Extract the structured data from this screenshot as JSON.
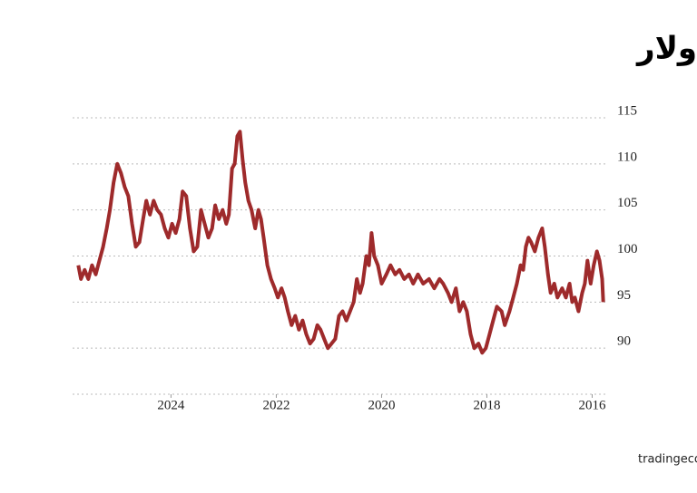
{
  "chart_data": {
    "type": "line",
    "title": "مؤشّر الدولار",
    "source": "المصدر: tradingeconomics.com",
    "x": [
      2015.79,
      2015.81,
      2015.86,
      2015.91,
      2015.97,
      2016.03,
      2016.09,
      2016.14,
      2016.19,
      2016.26,
      2016.33,
      2016.38,
      2016.43,
      2016.5,
      2016.57,
      2016.66,
      2016.72,
      2016.79,
      2016.84,
      2016.9,
      2016.95,
      2017.02,
      2017.09,
      2017.16,
      2017.21,
      2017.26,
      2017.31,
      2017.36,
      2017.43,
      2017.5,
      2017.57,
      2017.66,
      2017.72,
      2017.81,
      2017.88,
      2017.95,
      2018.02,
      2018.09,
      2018.16,
      2018.24,
      2018.31,
      2018.38,
      2018.45,
      2018.52,
      2018.59,
      2018.67,
      2018.74,
      2018.83,
      2018.9,
      2019.0,
      2019.1,
      2019.21,
      2019.31,
      2019.4,
      2019.48,
      2019.57,
      2019.66,
      2019.74,
      2019.83,
      2019.91,
      2020.0,
      2020.07,
      2020.14,
      2020.19,
      2020.24,
      2020.29,
      2020.36,
      2020.41,
      2020.47,
      2020.53,
      2020.6,
      2020.67,
      2020.74,
      2020.81,
      2020.88,
      2020.95,
      2021.02,
      2021.09,
      2021.16,
      2021.22,
      2021.29,
      2021.36,
      2021.43,
      2021.5,
      2021.57,
      2021.64,
      2021.71,
      2021.78,
      2021.84,
      2021.9,
      2021.97,
      2022.03,
      2022.1,
      2022.17,
      2022.24,
      2022.29,
      2022.34,
      2022.4,
      2022.47,
      2022.53,
      2022.59,
      2022.64,
      2022.69,
      2022.74,
      2022.79,
      2022.84,
      2022.9,
      2022.95,
      2023.02,
      2023.09,
      2023.16,
      2023.22,
      2023.29,
      2023.36,
      2023.43,
      2023.5,
      2023.57,
      2023.64,
      2023.71,
      2023.78,
      2023.84,
      2023.91,
      2023.98,
      2024.05,
      2024.12,
      2024.19,
      2024.26,
      2024.33,
      2024.4,
      2024.47,
      2024.53,
      2024.6,
      2024.67,
      2024.74,
      2024.81,
      2024.88,
      2024.95,
      2025.02,
      2025.09,
      2025.16,
      2025.22,
      2025.29,
      2025.36,
      2025.43,
      2025.5,
      2025.57,
      2025.64,
      2025.71,
      2025.76
    ],
    "series": [
      {
        "color": "#9e2a2b",
        "values": [
          95,
          97.5,
          99.5,
          100.5,
          99,
          97,
          99.5,
          97,
          96,
          94,
          95.5,
          95,
          97,
          95.5,
          96.5,
          95.5,
          97,
          96,
          98,
          101,
          103,
          102,
          100.5,
          101.5,
          102,
          101,
          98.5,
          99,
          97,
          95.5,
          94,
          92.5,
          94,
          94.5,
          93,
          91.5,
          90,
          89.5,
          90.5,
          90,
          91.5,
          94,
          95,
          94,
          96.5,
          95,
          96,
          97,
          97.5,
          96.5,
          97.5,
          97,
          98,
          97,
          98,
          97.5,
          98.5,
          98,
          99,
          98,
          97,
          99,
          100,
          102.5,
          99,
          100,
          97,
          96,
          97.5,
          95,
          94,
          93,
          94,
          93.5,
          91,
          90.5,
          90,
          91,
          92,
          92.5,
          91,
          90.5,
          91.5,
          93,
          92,
          93.5,
          92.5,
          94,
          95.5,
          96.5,
          95.5,
          96.5,
          97.5,
          99,
          102,
          104,
          105,
          103,
          105,
          106,
          108,
          110.5,
          113.5,
          113,
          110,
          109.5,
          104.5,
          103.5,
          105,
          104,
          105.5,
          103,
          102,
          103.5,
          105,
          101,
          100.5,
          103,
          106.5,
          107,
          104,
          102.5,
          103.5,
          102,
          103,
          104.5,
          105,
          106,
          104.5,
          106,
          104,
          101.5,
          101,
          103.5,
          106.5,
          107.5,
          109,
          110,
          108,
          105,
          103,
          101,
          99.5,
          98,
          99,
          97.5,
          98.5,
          97.5,
          99
        ]
      }
    ],
    "xlim": [
      2015.75,
      2025.8
    ],
    "x_reversed": true,
    "xticks": [
      2016,
      2018,
      2020,
      2022,
      2024
    ],
    "ylim": [
      85,
      115
    ],
    "yticks": [
      90,
      95,
      100,
      105,
      110,
      115
    ],
    "grid": true
  }
}
